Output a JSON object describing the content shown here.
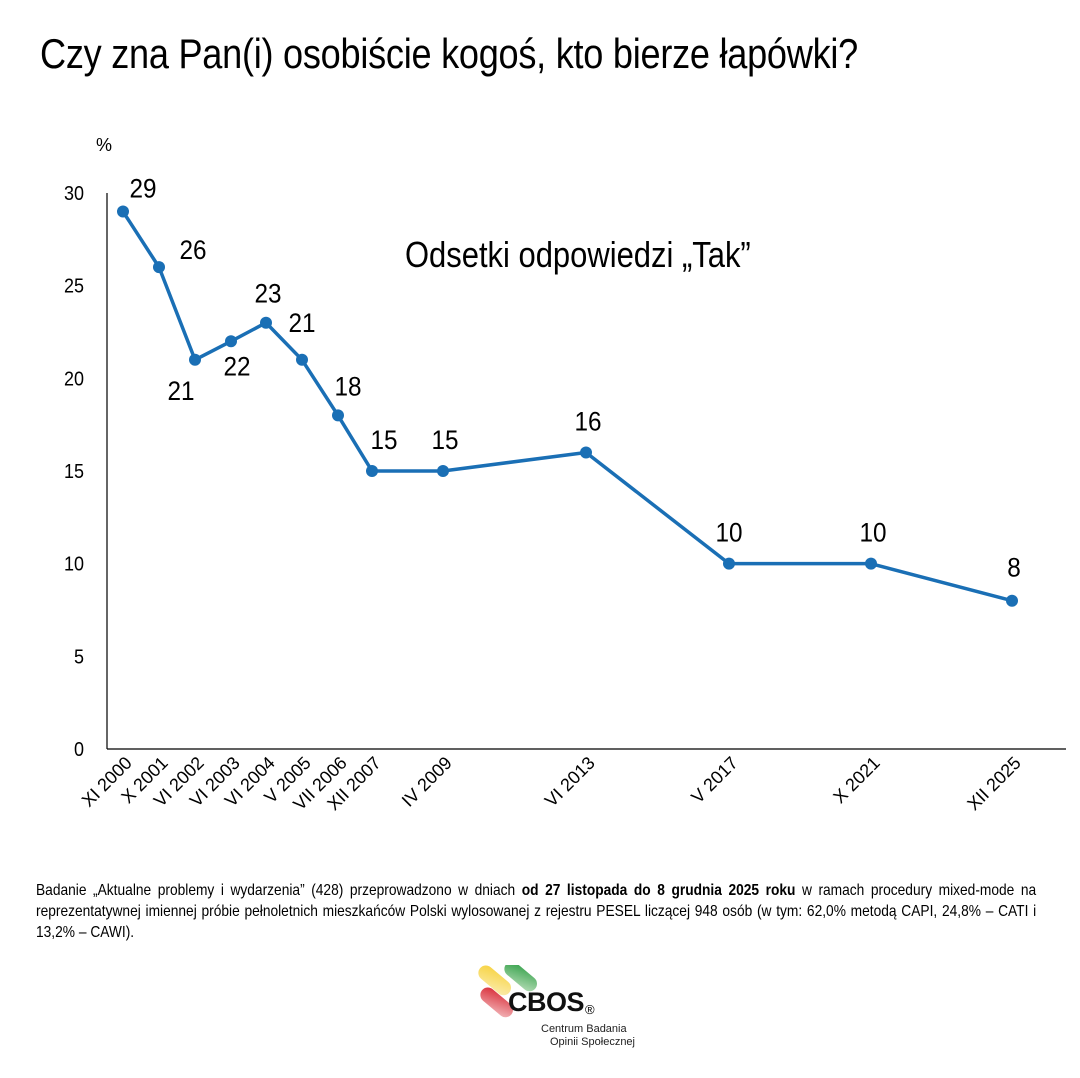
{
  "title": "Czy zna Pan(i) osobiście kogoś, kto bierze łapówki?",
  "chart_data": {
    "type": "line",
    "title": "Czy zna Pan(i) osobiście kogoś, kto bierze łapówki?",
    "subtitle": "Odsetki odpowiedzi „Tak”",
    "ylabel": "%",
    "xlabel": "",
    "ylim": [
      0,
      30
    ],
    "yticks": [
      0,
      5,
      10,
      15,
      20,
      25,
      30
    ],
    "grid": false,
    "legend": null,
    "categories": [
      "XI 2000",
      "X 2001",
      "VI 2002",
      "VI 2003",
      "VI 2004",
      "V 2005",
      "VII 2006",
      "XII 2007",
      "IV 2009",
      "VI 2013",
      "V 2017",
      "X 2021",
      "XII 2025"
    ],
    "series": [
      {
        "name": "Tak",
        "color": "#1A6FB5",
        "values": [
          29,
          26,
          21,
          22,
          23,
          21,
          18,
          15,
          15,
          16,
          10,
          10,
          8
        ]
      }
    ]
  },
  "axis": {
    "y_unit": "%",
    "y_tick_labels": [
      "0",
      "5",
      "10",
      "15",
      "20",
      "25",
      "30"
    ]
  },
  "chart_subtitle": "Odsetki odpowiedzi „Tak”",
  "footnote": {
    "part1": "Badanie „Aktualne problemy i wydarzenia” (428) przeprowadzono w dniach ",
    "bold": "od 27 listopada do 8 grudnia 2025 roku",
    "part2": " w ramach procedury mixed-mode na reprezentatywnej imiennej próbie pełnoletnich mieszkańców Polski wylosowanej z rejestru PESEL liczącej 948 osób (w tym: 62,0% metodą CAPI, 24,8% – CATI i 13,2% – CAWI)."
  },
  "logo": {
    "name": "CBOS",
    "registered": "®",
    "line1": "Centrum Badania",
    "line2": "Opinii Społecznej",
    "colors": [
      "#F2C12E",
      "#3AA547",
      "#D9303A"
    ]
  }
}
